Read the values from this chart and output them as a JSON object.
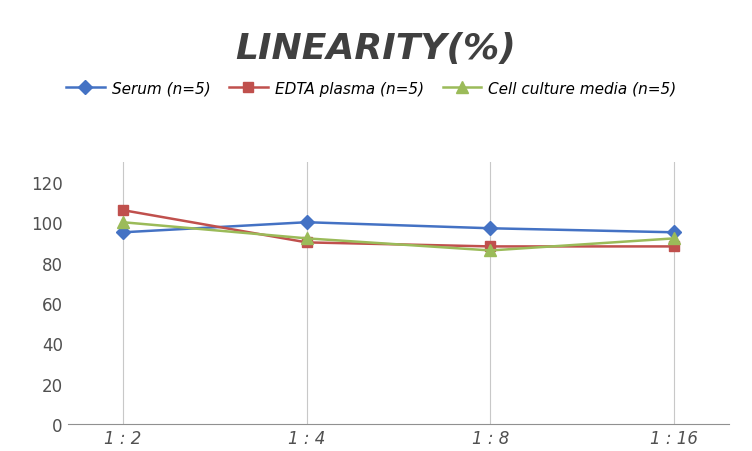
{
  "title": "LINEARITY(%)",
  "title_fontsize": 26,
  "title_color": "#404040",
  "x_labels": [
    "1 : 2",
    "1 : 4",
    "1 : 8",
    "1 : 16"
  ],
  "series": [
    {
      "label": "Serum (n=5)",
      "values": [
        95,
        100,
        97,
        95
      ],
      "color": "#4472C4",
      "marker": "D",
      "marker_size": 7,
      "linewidth": 1.8
    },
    {
      "label": "EDTA plasma (n=5)",
      "values": [
        106,
        90,
        88,
        88
      ],
      "color": "#C0504D",
      "marker": "s",
      "marker_size": 7,
      "linewidth": 1.8
    },
    {
      "label": "Cell culture media (n=5)",
      "values": [
        100,
        92,
        86,
        92
      ],
      "color": "#9BBB59",
      "marker": "^",
      "marker_size": 8,
      "linewidth": 1.8
    }
  ],
  "ylim": [
    0,
    130
  ],
  "yticks": [
    0,
    20,
    40,
    60,
    80,
    100,
    120
  ],
  "grid_color": "#C8C8C8",
  "grid_linewidth": 0.8,
  "background_color": "#FFFFFF",
  "legend_fontsize": 11,
  "tick_fontsize": 12,
  "tick_color": "#505050"
}
